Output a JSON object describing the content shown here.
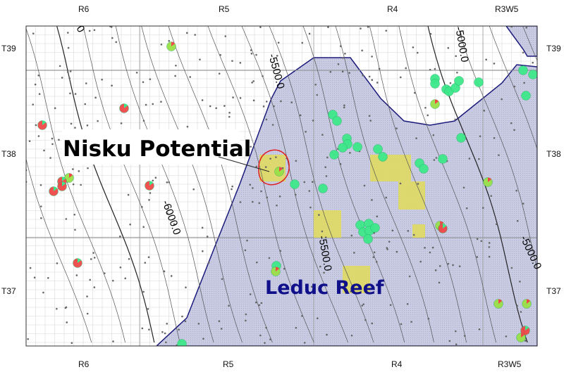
{
  "range_labels_top": [
    "R6",
    "R5",
    "R4",
    "R3W5"
  ],
  "range_labels_bottom": [
    "R6",
    "R5",
    "R4",
    "R3W5"
  ],
  "township_labels_left": [
    "T39",
    "T38",
    "T37"
  ],
  "township_labels_right": [
    "T39",
    "T38",
    "T37"
  ],
  "contour_labels": [
    "-5500.0",
    "-6000.0",
    "-5000.0",
    "-5000.0",
    "-5500.0",
    "0"
  ],
  "annotations": {
    "nisku": "Nisku Potential",
    "leduc": "Leduc Reef"
  },
  "colors": {
    "reef_fill": "#c9cbe3",
    "reef_outline": "#1a1a7a",
    "prospect_fill": "#e0dc5a",
    "nisku_outline": "#e02020",
    "well_green": "#3de88a",
    "well_red": "#f04848",
    "leduc_text": "#10108a"
  }
}
